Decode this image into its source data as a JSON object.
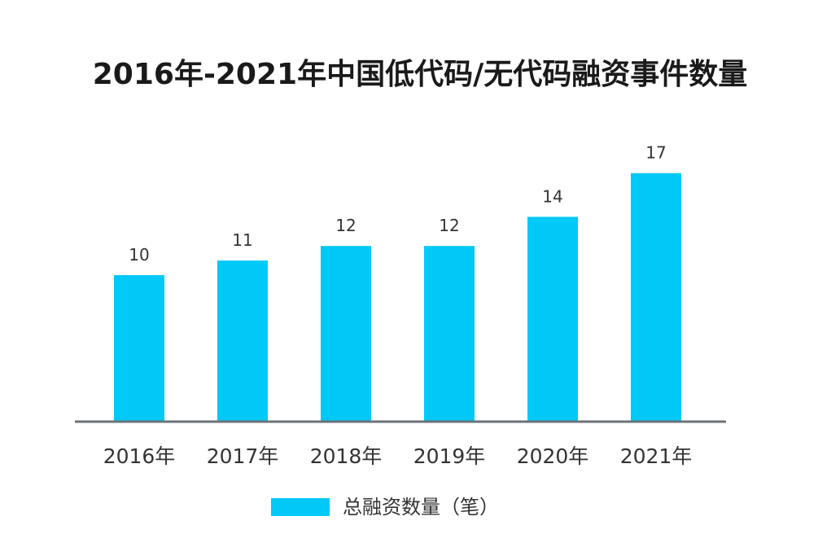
{
  "chart_data": {
    "type": "bar",
    "title": "2016年-2021年中国低代码/无代码融资事件数量",
    "categories": [
      "2016年",
      "2017年",
      "2018年",
      "2019年",
      "2020年",
      "2021年"
    ],
    "series": [
      {
        "name": "总融资数量（笔）",
        "values": [
          10,
          11,
          12,
          12,
          14,
          17
        ],
        "color": "#00c8f7"
      }
    ],
    "ylim": [
      0,
      24
    ],
    "grid": false,
    "legend_position": "bottom-center",
    "axis_color": "#6b7378"
  }
}
